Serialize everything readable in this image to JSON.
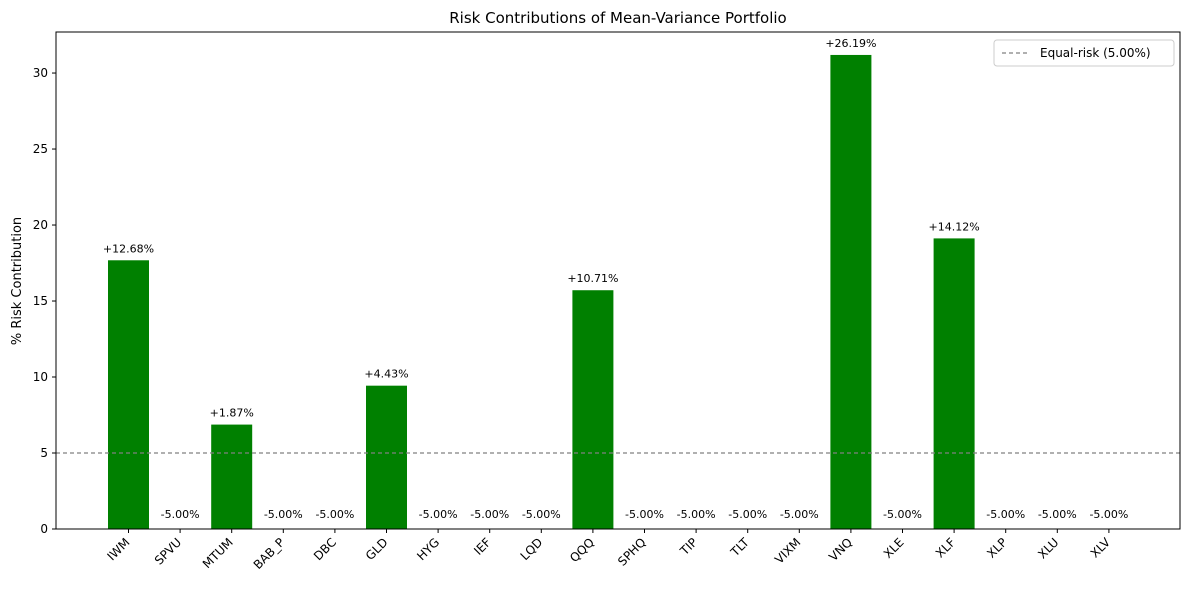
{
  "chart_data": {
    "type": "bar",
    "title": "Risk Contributions of Mean-Variance Portfolio",
    "xlabel": "",
    "ylabel": "% Risk Contribution",
    "ylim": [
      0,
      32.7
    ],
    "yticks": [
      0,
      5,
      10,
      15,
      20,
      25,
      30
    ],
    "grid": false,
    "categories": [
      "IWM",
      "SPVU",
      "MTUM",
      "BAB_P",
      "DBC",
      "GLD",
      "HYG",
      "IEF",
      "LQD",
      "QQQ",
      "SPHQ",
      "TIP",
      "TLT",
      "VIXM",
      "VNQ",
      "XLE",
      "XLF",
      "XLP",
      "XLU",
      "XLV"
    ],
    "values": [
      17.68,
      0,
      6.87,
      0,
      0,
      9.43,
      0,
      0,
      0,
      15.71,
      0,
      0,
      0,
      0,
      31.19,
      0,
      19.12,
      0,
      0,
      0
    ],
    "data_labels": [
      "+12.68%",
      "-5.00%",
      "+1.87%",
      "-5.00%",
      "-5.00%",
      "+4.43%",
      "-5.00%",
      "-5.00%",
      "-5.00%",
      "+10.71%",
      "-5.00%",
      "-5.00%",
      "-5.00%",
      "-5.00%",
      "+26.19%",
      "-5.00%",
      "+14.12%",
      "-5.00%",
      "-5.00%",
      "-5.00%"
    ],
    "bar_color": "#008000",
    "reference_line": {
      "value": 5,
      "label": "Equal-risk (5.00%)",
      "color": "#808080",
      "style": "dashed"
    },
    "legend_position": "top-right"
  }
}
